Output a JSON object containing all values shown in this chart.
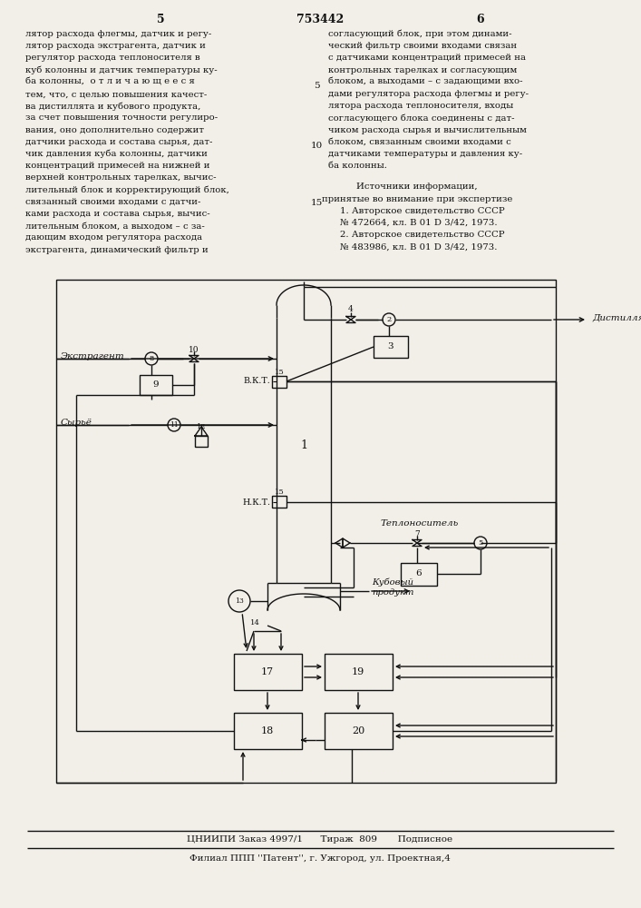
{
  "bg": "#f2efe8",
  "tc": "#111111",
  "header_patent": "753442",
  "header_p5": "5",
  "header_p6": "6",
  "left_col": [
    "лятор расхода флегмы, датчик и регу-",
    "лятор расхода экстрагента, датчик и",
    "регулятор расхода теплоносителя в",
    "куб колонны и датчик температуры ку-",
    "ба колонны,  о т л и ч а ю щ е е с я",
    "тем, что, с целью повышения качест-",
    "ва дистиллята и кубового продукта,",
    "за счет повышения точности регулиро-",
    "вания, оно дополнительно содержит",
    "датчики расхода и состава сырья, дат-",
    "чик давления куба колонны, датчики",
    "концентраций примесей на нижней и",
    "верхней контрольных тарелках, вычис-",
    "лительный блок и корректирующий блок,",
    "связанный своими входами с датчи-",
    "ками расхода и состава сырья, вычис-",
    "лительным блоком, а выходом – с за-",
    "дающим входом регулятора расхода",
    "экстрагента, динамический фильтр и"
  ],
  "right_col": [
    "согласующий блок, при этом динами-",
    "ческий фильтр своими входами связан",
    "с датчиками концентраций примесей на",
    "контрольных тарелках и согласующим",
    "блоком, а выходами – с задающими вхо-",
    "дами регулятора расхода флегмы и регу-",
    "лятора расхода теплоносителя, входы",
    "согласующего блока соединены с дат-",
    "чиком расхода сырья и вычислительным",
    "блоком, связанным своими входами с",
    "датчиками температуры и давления ку-",
    "ба колонны."
  ],
  "src_title": "Источники информации,",
  "src_sub": "принятые во внимание при экспертизе",
  "src_lines": [
    "1. Авторское свидетельство СССР",
    "№ 472664, кл. В 01 D 3/42, 1973.",
    "2. Авторское свидетельство СССР",
    "№ 483986, кл. В 01 D 3/42, 1973."
  ],
  "footer1": "ЦНИИПИ Заказ 4997/1      Тираж  809       Подписное",
  "footer2": "Филиал ППП ''Патент'', г. Ужгород, ул. Проектная,4"
}
